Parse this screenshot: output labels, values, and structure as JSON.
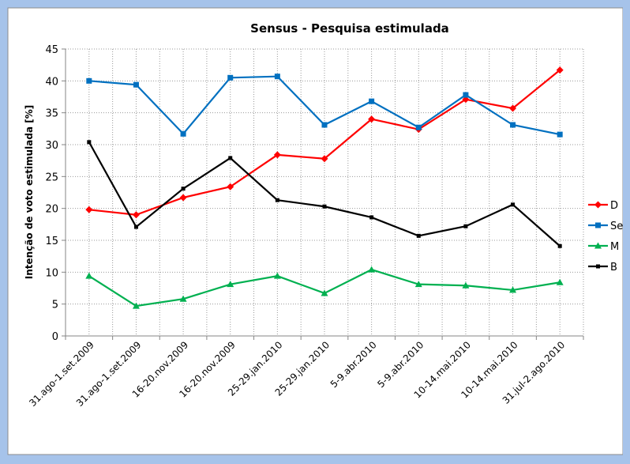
{
  "chart_data": {
    "type": "line",
    "title": "Sensus - Pesquisa estimulada",
    "xlabel": "",
    "ylabel": "Intenção de voto estimulada [%]",
    "ylim": [
      0,
      45
    ],
    "yticks": [
      0,
      5,
      10,
      15,
      20,
      25,
      30,
      35,
      40,
      45
    ],
    "grid": true,
    "legend_position": "right",
    "categories": [
      "31.ago-1.set.2009",
      "31.ago-1.set.2009",
      "16-20.nov.2009",
      "16-20.nov.2009",
      "25-29.jan.2010",
      "25-29.jan.2010",
      "5-9.abr.2010",
      "5-9.abr.2010",
      "10-14.mai.2010",
      "10-14.mai.2010",
      "31.jul-2.ago.2010"
    ],
    "series": [
      {
        "name": "D",
        "color": "#ff0000",
        "marker": "diamond",
        "values": [
          19.8,
          19.0,
          21.7,
          23.4,
          28.4,
          27.8,
          34.0,
          32.4,
          37.1,
          35.7,
          41.7
        ]
      },
      {
        "name": "Se",
        "color": "#0070c0",
        "marker": "square",
        "values": [
          40.0,
          39.4,
          31.7,
          40.5,
          40.7,
          33.1,
          36.8,
          32.7,
          37.8,
          33.1,
          31.6
        ]
      },
      {
        "name": "M",
        "color": "#00b050",
        "marker": "triangle",
        "values": [
          9.4,
          4.7,
          5.8,
          8.1,
          9.4,
          6.7,
          10.4,
          8.1,
          7.9,
          7.2,
          8.4
        ]
      },
      {
        "name": "B",
        "color": "#000000",
        "marker": "square-small",
        "values": [
          30.4,
          17.1,
          23.1,
          27.9,
          21.3,
          20.3,
          18.6,
          15.7,
          17.2,
          20.6,
          14.1
        ]
      }
    ]
  }
}
